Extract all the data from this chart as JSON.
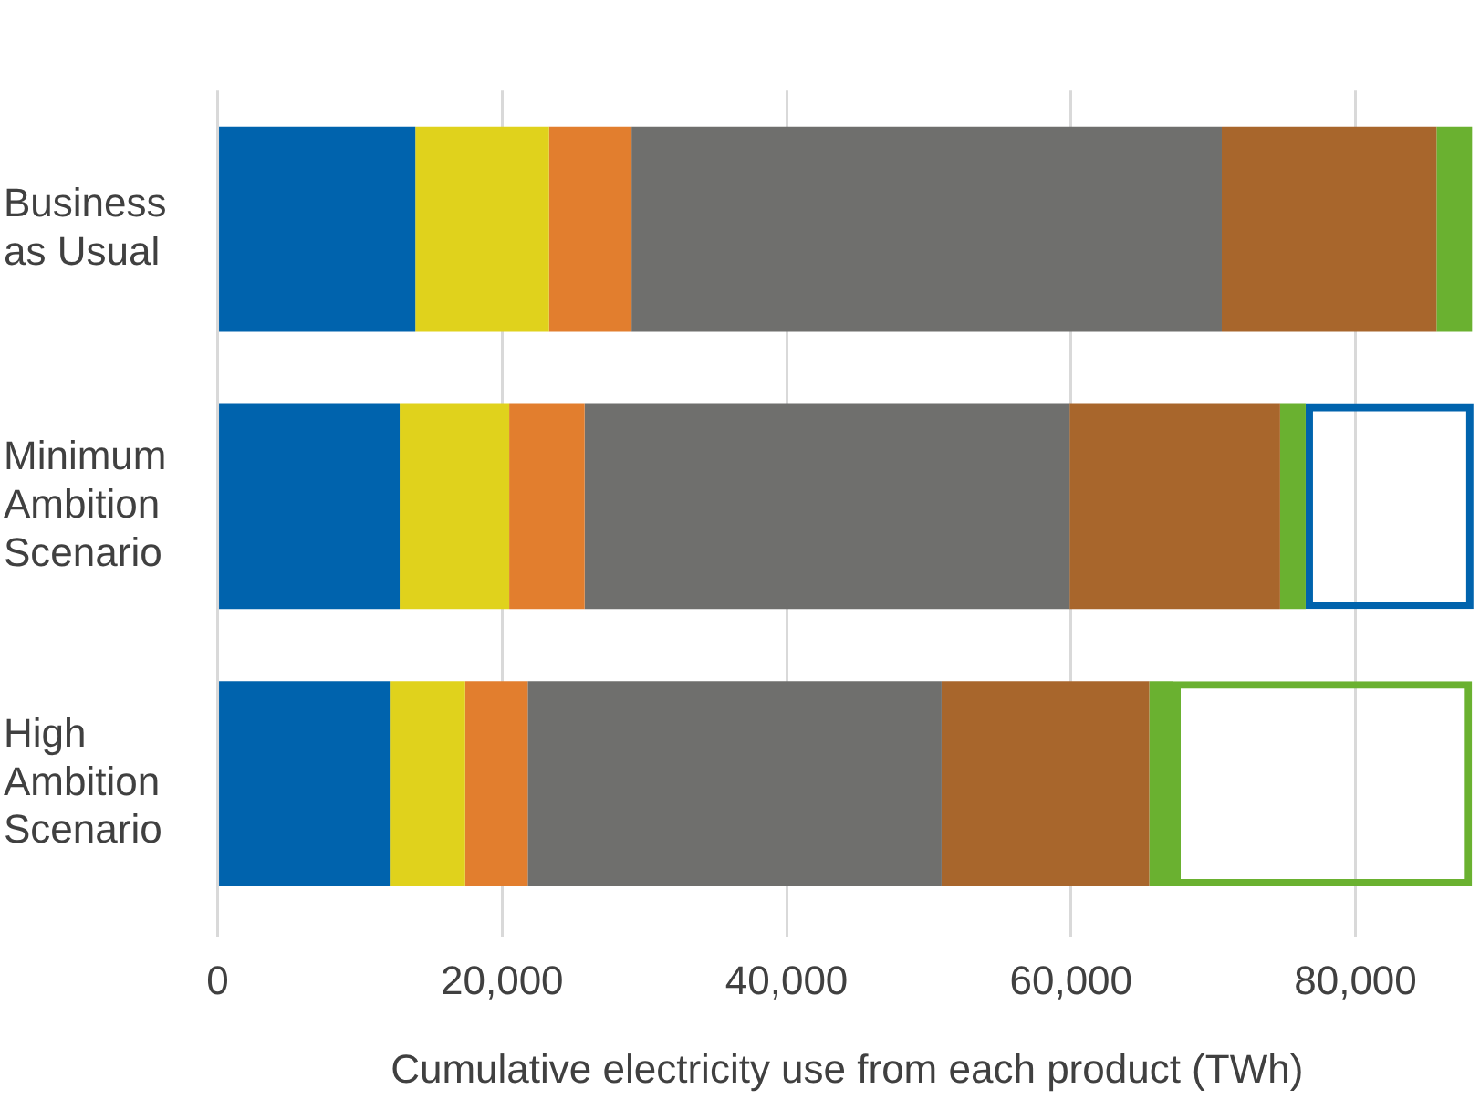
{
  "chart_data": {
    "type": "bar",
    "orientation": "horizontal",
    "stacked": true,
    "xlabel": "Cumulative electricity use from each product (TWh)",
    "categories": [
      "Business as Usual",
      "Minimum Ambition Scenario",
      "High Ambition Scenario"
    ],
    "series": [
      {
        "color": "#0063ad",
        "values": [
          13900,
          12800,
          12100
        ]
      },
      {
        "color": "#e0d21c",
        "values": [
          9400,
          7700,
          5300
        ]
      },
      {
        "color": "#e27e2e",
        "values": [
          5800,
          5300,
          4400
        ]
      },
      {
        "color": "#6f6f6d",
        "values": [
          41500,
          34100,
          29100
        ]
      },
      {
        "color": "#a8662c",
        "values": [
          15100,
          14800,
          14600
        ]
      },
      {
        "color": "#6ab130",
        "values": [
          2500,
          1800,
          1700
        ]
      },
      {
        "colors": [
          null,
          "#0063ad",
          "#6ab130"
        ],
        "values": [
          null,
          11800,
          21000
        ]
      }
    ],
    "xlim": [
      0,
      88500
    ],
    "xticks": [
      {
        "value": 0,
        "label": "0"
      },
      {
        "value": 20000,
        "label": "20,000"
      },
      {
        "value": 40000,
        "label": "40,000"
      },
      {
        "value": 60000,
        "label": "60,000"
      },
      {
        "value": 80000,
        "label": "80,000"
      }
    ],
    "grid": "x",
    "legend": false
  }
}
